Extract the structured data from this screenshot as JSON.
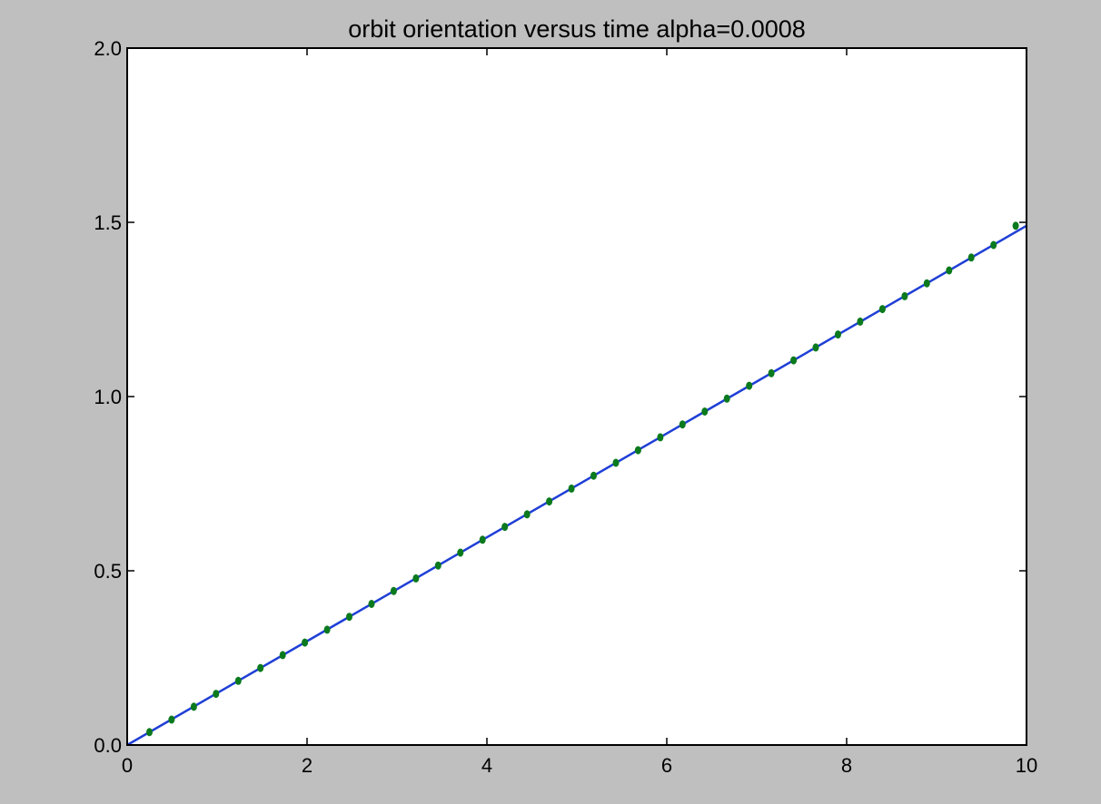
{
  "chart_data": {
    "type": "line",
    "title": "orbit orientation versus time alpha=0.0008",
    "xlabel": "",
    "ylabel": "",
    "xlim": [
      0,
      10
    ],
    "ylim": [
      0,
      2.0
    ],
    "x_ticks": [
      "0",
      "2",
      "4",
      "6",
      "8",
      "10"
    ],
    "y_ticks": [
      "0.0",
      "0.5",
      "1.0",
      "1.5",
      "2.0"
    ],
    "grid": false,
    "legend": "none",
    "series": [
      {
        "style": "line",
        "color": "#1f3fd6",
        "x": [
          0,
          10
        ],
        "y": [
          0,
          1.49
        ]
      },
      {
        "style": "scatter",
        "color": "#0b7a1e",
        "x": [
          0.247,
          0.494,
          0.741,
          0.988,
          1.235,
          1.482,
          1.729,
          1.976,
          2.223,
          2.47,
          2.717,
          2.964,
          3.211,
          3.458,
          3.705,
          3.952,
          4.199,
          4.446,
          4.693,
          4.94,
          5.187,
          5.434,
          5.681,
          5.928,
          6.175,
          6.422,
          6.669,
          6.916,
          7.163,
          7.41,
          7.657,
          7.904,
          8.151,
          8.398,
          8.645,
          8.892,
          9.139,
          9.386,
          9.633,
          9.88
        ],
        "y": [
          0.037,
          0.073,
          0.11,
          0.147,
          0.184,
          0.221,
          0.258,
          0.294,
          0.331,
          0.368,
          0.405,
          0.442,
          0.478,
          0.515,
          0.552,
          0.589,
          0.626,
          0.662,
          0.699,
          0.736,
          0.773,
          0.81,
          0.846,
          0.883,
          0.92,
          0.957,
          0.994,
          1.031,
          1.067,
          1.104,
          1.141,
          1.178,
          1.215,
          1.251,
          1.288,
          1.325,
          1.362,
          1.399,
          1.435,
          1.49
        ]
      }
    ]
  }
}
